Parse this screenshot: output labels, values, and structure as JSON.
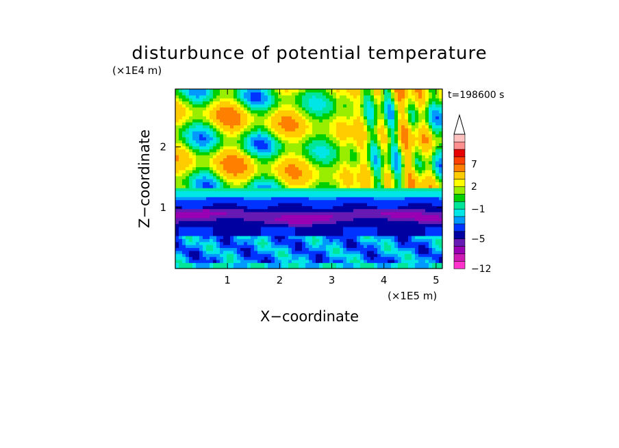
{
  "chart_data": {
    "type": "heatmap",
    "title": "disturbunce of potential temperature",
    "time_label": "t=198600 s",
    "xlabel": "X−coordinate",
    "ylabel": "Z−coordinate",
    "x_scale_label": "(×1E5 m)",
    "y_scale_label": "(×1E4 m)",
    "xlim": [
      0,
      5.12
    ],
    "ylim": [
      0,
      2.95
    ],
    "x_ticks": [
      {
        "value": 1,
        "label": "1"
      },
      {
        "value": 2,
        "label": "2"
      },
      {
        "value": 3,
        "label": "3"
      },
      {
        "value": 4,
        "label": "4"
      },
      {
        "value": 5,
        "label": "5"
      }
    ],
    "y_ticks": [
      {
        "value": 1,
        "label": "1"
      },
      {
        "value": 2,
        "label": "2"
      }
    ],
    "colorbar": {
      "levels": [
        -12,
        -10,
        -8,
        -6,
        -5,
        -4,
        -3,
        -2,
        -1,
        0,
        1,
        2,
        3,
        5,
        7,
        9,
        11
      ],
      "colors": [
        "#ff33cc",
        "#cc1ab3",
        "#9900b3",
        "#6619b3",
        "#0000a0",
        "#0033ff",
        "#0099ff",
        "#00e6e6",
        "#00e699",
        "#00d000",
        "#99ee00",
        "#ffff00",
        "#ffcc00",
        "#ff8000",
        "#ff4000",
        "#e60000",
        "#ff9090",
        "#ffc0c0"
      ],
      "extend": "max",
      "tick_labels": [
        {
          "value": 7,
          "label": "7"
        },
        {
          "value": 2,
          "label": "2"
        },
        {
          "value": -1,
          "label": "−1"
        },
        {
          "value": -5,
          "label": "−5"
        },
        {
          "value": -12,
          "label": "−12"
        }
      ]
    }
  }
}
